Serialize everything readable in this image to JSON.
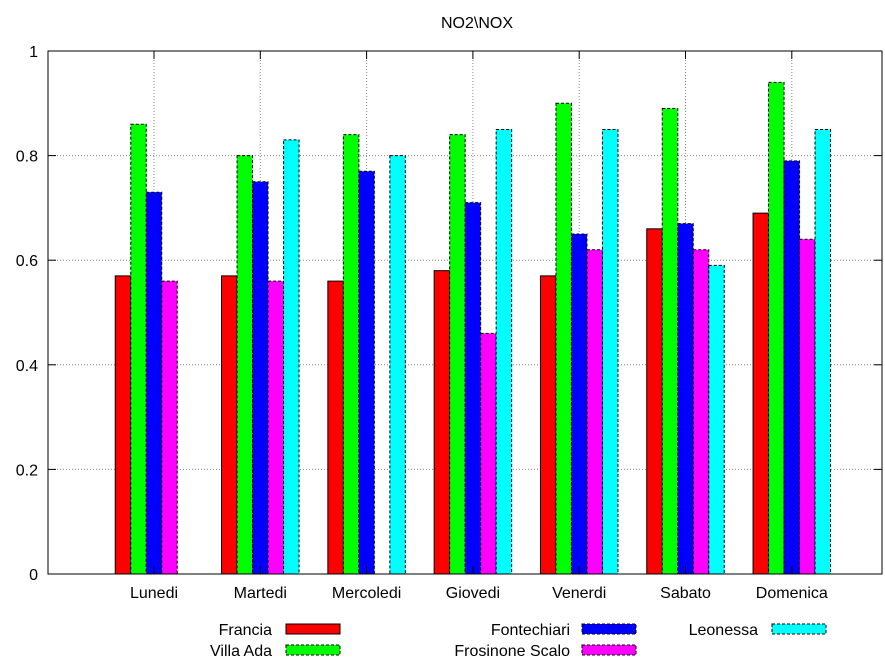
{
  "chart_data": {
    "type": "bar",
    "title": "NO2\\NOX",
    "xlabel": "",
    "ylabel": "",
    "ylim": [
      0,
      1
    ],
    "yticks": [
      "0",
      "0.2",
      "0.4",
      "0.6",
      "0.8",
      "1"
    ],
    "grid": true,
    "legend_position": "bottom",
    "categories": [
      "Lunedi",
      "Martedi",
      "Mercoledi",
      "Giovedi",
      "Venerdi",
      "Sabato",
      "Domenica"
    ],
    "series": [
      {
        "name": "Francia",
        "color": "#ff0000",
        "dashed": false,
        "values": [
          0.57,
          0.57,
          0.56,
          0.58,
          0.57,
          0.66,
          0.69
        ]
      },
      {
        "name": "Villa Ada",
        "color": "#00ff00",
        "dashed": true,
        "values": [
          0.86,
          0.8,
          0.84,
          0.84,
          0.9,
          0.89,
          0.94
        ]
      },
      {
        "name": "Fontechiari",
        "color": "#0000ff",
        "dashed": true,
        "values": [
          0.73,
          0.75,
          0.77,
          0.71,
          0.65,
          0.67,
          0.79
        ]
      },
      {
        "name": "Frosinone Scalo",
        "color": "#ff00ff",
        "dashed": true,
        "values": [
          0.56,
          0.56,
          0.0,
          0.46,
          0.62,
          0.62,
          0.64
        ]
      },
      {
        "name": "Leonessa",
        "color": "#00ffff",
        "dashed": true,
        "values": [
          0.0,
          0.83,
          0.8,
          0.85,
          0.85,
          0.59,
          0.85
        ]
      }
    ]
  }
}
